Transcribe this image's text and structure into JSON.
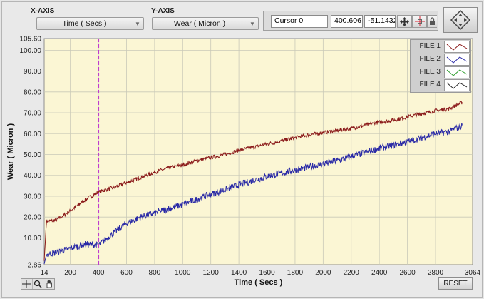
{
  "controls": {
    "x_axis_title": "X-AXIS",
    "x_axis_value": "Time ( Secs )",
    "y_axis_title": "Y-AXIS",
    "y_axis_value": "Wear ( Micron )"
  },
  "cursor": {
    "name": "Cursor 0",
    "x_value": "400.606",
    "y_value": "-51.1432"
  },
  "reset_label": "RESET",
  "legend": [
    {
      "name": "FILE 1",
      "color": "#8b1a1a"
    },
    {
      "name": "FILE 2",
      "color": "#2a2aa6"
    },
    {
      "name": "FILE 3",
      "color": "#2e9e2e"
    },
    {
      "name": "FILE 4",
      "color": "#222222"
    }
  ],
  "chart_data": {
    "type": "line",
    "xlabel": "Time ( Secs )",
    "ylabel": "Wear ( Micron )",
    "xlim": [
      14,
      3064
    ],
    "ylim": [
      -2.86,
      105.6
    ],
    "x_ticks": [
      14,
      200,
      400,
      600,
      800,
      1000,
      1200,
      1400,
      1600,
      1800,
      2000,
      2200,
      2400,
      2600,
      2800,
      3064
    ],
    "y_ticks": [
      "-2.86",
      "10.00",
      "20.00",
      "30.00",
      "40.00",
      "50.00",
      "60.00",
      "70.00",
      "80.00",
      "90.00",
      "100.00",
      "105.60"
    ],
    "y_tick_values": [
      -2.86,
      10,
      20,
      30,
      40,
      50,
      60,
      70,
      80,
      90,
      100,
      105.6
    ],
    "grid": true,
    "cursor_x": 400,
    "series": [
      {
        "name": "FILE 1",
        "color": "#8b1a1a",
        "x": [
          14,
          30,
          100,
          200,
          300,
          400,
          500,
          600,
          700,
          800,
          900,
          1000,
          1100,
          1200,
          1300,
          1400,
          1500,
          1600,
          1700,
          1800,
          1900,
          2000,
          2100,
          2200,
          2300,
          2400,
          2500,
          2600,
          2700,
          2800,
          2900,
          2990
        ],
        "y": [
          -1,
          18,
          18.5,
          23,
          28,
          32,
          34,
          36.5,
          39,
          41.5,
          43.5,
          45,
          47,
          48.5,
          50,
          52,
          53.5,
          55,
          56.5,
          58,
          59.5,
          60.5,
          61.5,
          62.5,
          64,
          65.5,
          66.5,
          68,
          69.5,
          71,
          72,
          75
        ]
      },
      {
        "name": "FILE 2",
        "color": "#2a2aa6",
        "x": [
          14,
          30,
          100,
          200,
          300,
          400,
          500,
          600,
          700,
          800,
          900,
          1000,
          1100,
          1200,
          1300,
          1400,
          1500,
          1600,
          1700,
          1800,
          1900,
          2000,
          2100,
          2200,
          2300,
          2400,
          2500,
          2600,
          2700,
          2800,
          2900,
          2990
        ],
        "y": [
          -2.5,
          2,
          3,
          5,
          7,
          6.5,
          12,
          17,
          20,
          22,
          24,
          26,
          28.5,
          31,
          33,
          35.5,
          37.5,
          39.5,
          41,
          42.5,
          44,
          45.5,
          47,
          49,
          51,
          53,
          54.5,
          56,
          58,
          60,
          61,
          64
        ]
      }
    ]
  }
}
